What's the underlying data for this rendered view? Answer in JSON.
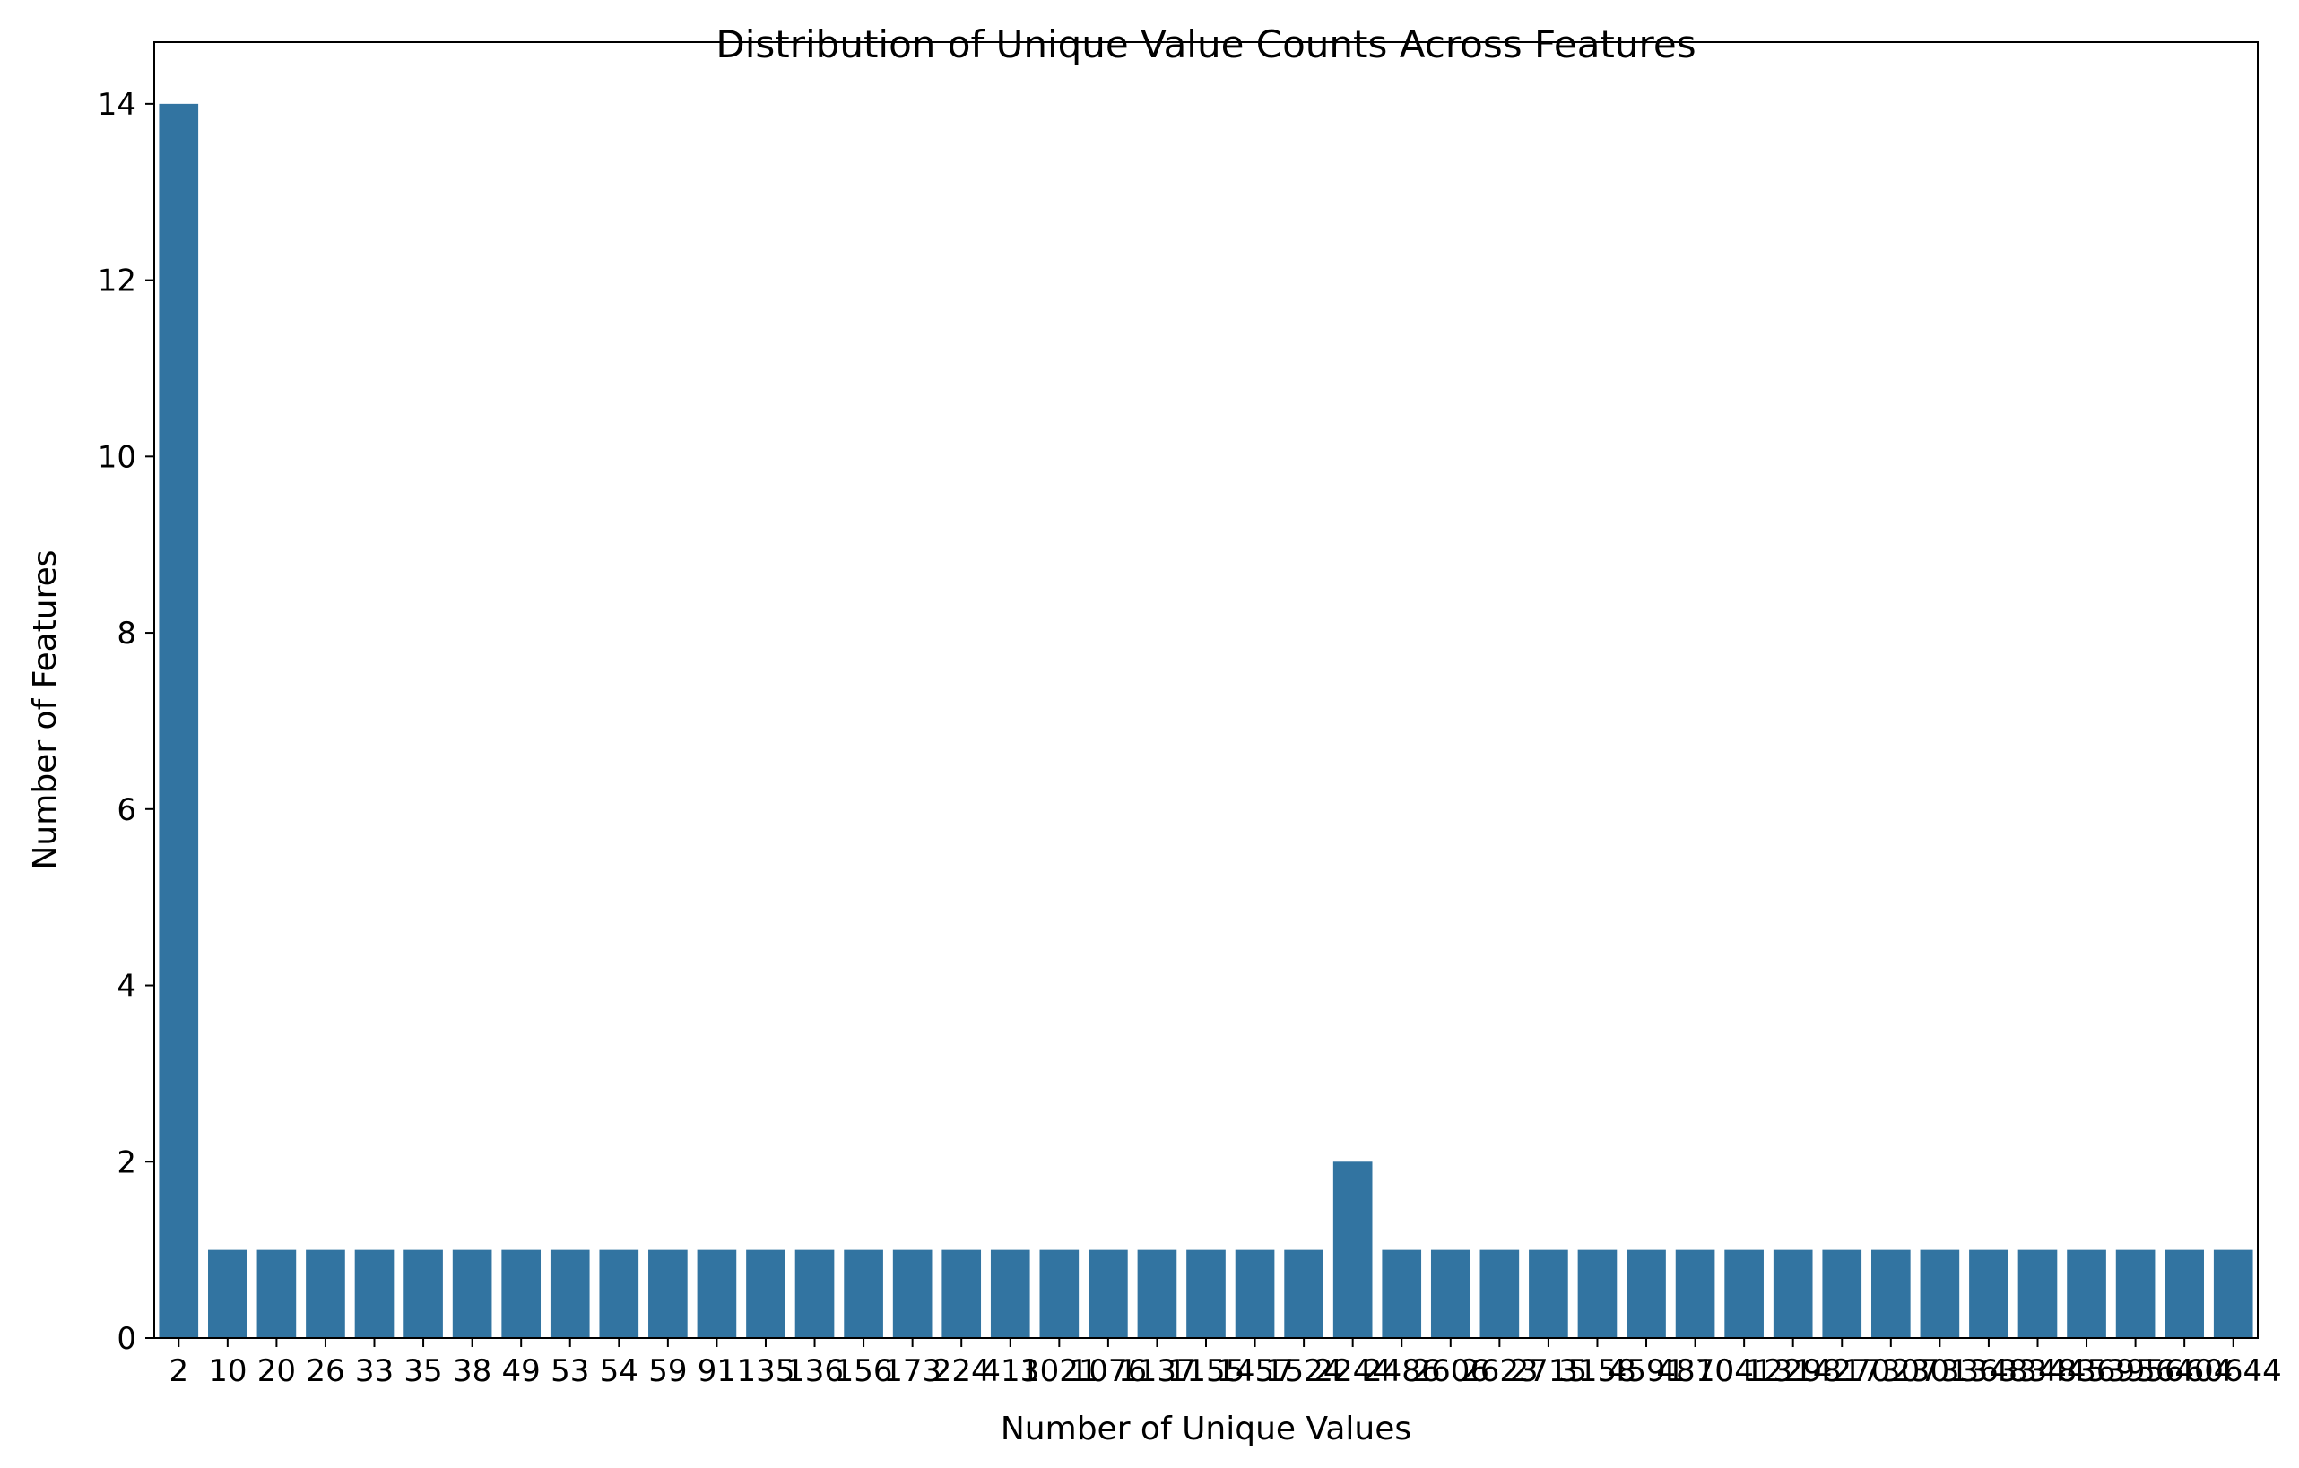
{
  "chart_data": {
    "type": "bar",
    "title": "Distribution of Unique Value Counts Across Features",
    "xlabel": "Number of Unique Values",
    "ylabel": "Number of Features",
    "categories": [
      "2",
      "10",
      "20",
      "26",
      "33",
      "35",
      "38",
      "49",
      "53",
      "54",
      "59",
      "91",
      "135",
      "136",
      "156",
      "173",
      "224",
      "413",
      "1021",
      "1076",
      "1137",
      "1155",
      "1457",
      "1524",
      "2244",
      "2486",
      "2606",
      "2623",
      "2715",
      "3158",
      "4591",
      "4870",
      "10413",
      "12298",
      "14270",
      "17307",
      "23013",
      "33633",
      "48344",
      "48369",
      "53956",
      "56404",
      "60644"
    ],
    "values": [
      14,
      1,
      1,
      1,
      1,
      1,
      1,
      1,
      1,
      1,
      1,
      1,
      1,
      1,
      1,
      1,
      1,
      1,
      1,
      1,
      1,
      1,
      1,
      1,
      2,
      1,
      1,
      1,
      1,
      1,
      1,
      1,
      1,
      1,
      1,
      1,
      1,
      1,
      1,
      1,
      1,
      1,
      1
    ],
    "y_ticks": [
      0,
      2,
      4,
      6,
      8,
      10,
      12,
      14
    ],
    "ylim": [
      0,
      14.7
    ],
    "bar_color": "#3274a1",
    "grid": false,
    "legend": "none"
  }
}
